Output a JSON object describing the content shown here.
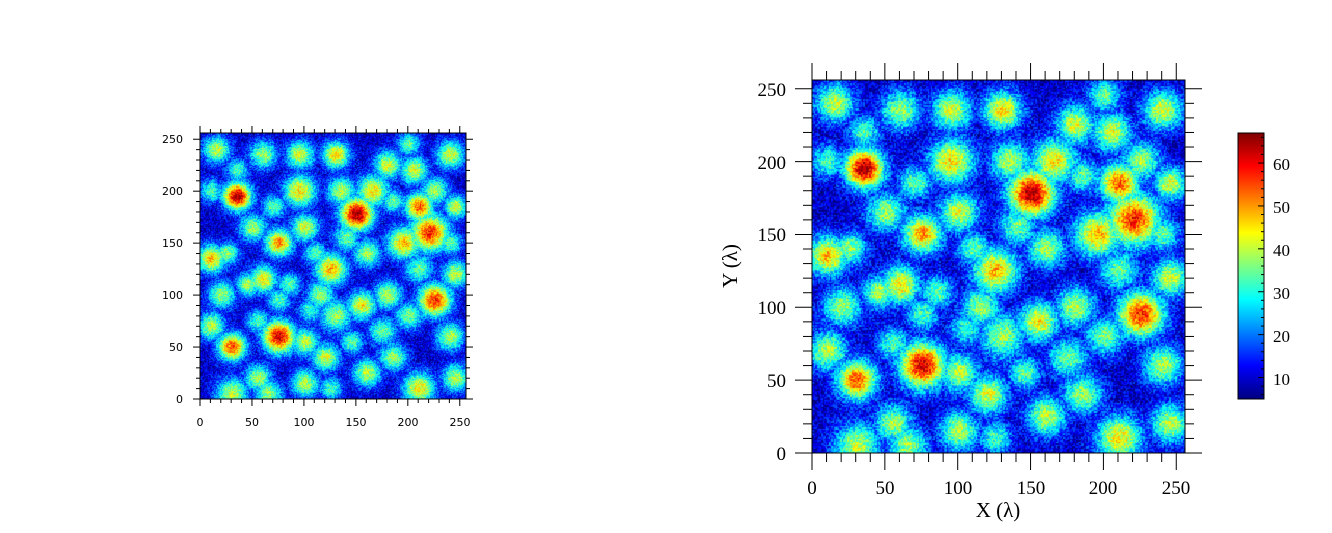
{
  "chart_data": [
    {
      "type": "heatmap",
      "title": "",
      "xlabel": "",
      "ylabel": "",
      "xlim": [
        0,
        256
      ],
      "ylim": [
        0,
        256
      ],
      "xticks": [
        0,
        50,
        100,
        150,
        200,
        250
      ],
      "yticks": [
        0,
        50,
        100,
        150,
        200,
        250
      ],
      "xtick_labels": [
        "0",
        "50",
        "100",
        "150",
        "200",
        "250"
      ],
      "ytick_labels": [
        "0",
        "50",
        "100",
        "150",
        "200",
        "250"
      ],
      "colorbar": false,
      "grid": false
    },
    {
      "type": "heatmap",
      "title": "",
      "xlabel": "X (λ)",
      "ylabel": "Y (λ)",
      "xlim": [
        0,
        256
      ],
      "ylim": [
        0,
        256
      ],
      "xticks": [
        0,
        50,
        100,
        150,
        200,
        250
      ],
      "yticks": [
        0,
        50,
        100,
        150,
        200,
        250
      ],
      "xtick_labels": [
        "0",
        "50",
        "100",
        "150",
        "200",
        "250"
      ],
      "ytick_labels": [
        "0",
        "50",
        "100",
        "150",
        "200",
        "250"
      ],
      "colorbar": true,
      "colorbar_range": [
        5,
        67
      ],
      "colorbar_ticks": [
        10,
        20,
        30,
        40,
        50,
        60
      ],
      "colorbar_tick_labels": [
        "10",
        "20",
        "30",
        "40",
        "50",
        "60"
      ],
      "colormap": "jet",
      "grid": false
    }
  ]
}
